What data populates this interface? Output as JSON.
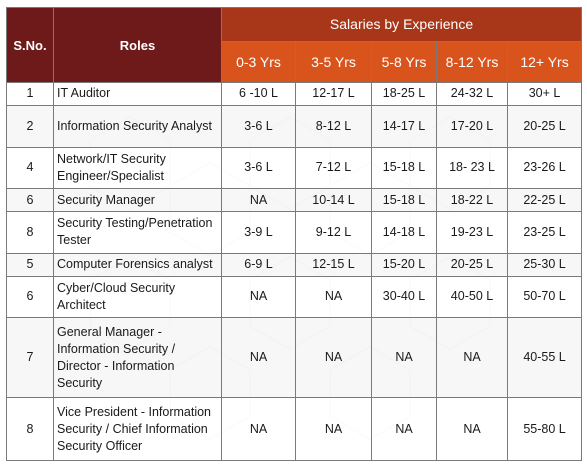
{
  "header": {
    "sno_label": "S.No.",
    "roles_label": "Roles",
    "group_label": "Salaries by Experience",
    "experience_columns": [
      "0-3 Yrs",
      "3-5 Yrs",
      "5-8 Yrs",
      "8-12 Yrs",
      "12+ Yrs"
    ]
  },
  "rows": [
    {
      "sno": "1",
      "role": "IT Auditor",
      "values": [
        "6 -10 L",
        "12-17 L",
        "18-25 L",
        "24-32 L",
        "30+ L"
      ]
    },
    {
      "sno": "2",
      "role": "Information Security Analyst",
      "values": [
        "3-6 L",
        "8-12 L",
        "14-17 L",
        "17-20 L",
        "20-25 L"
      ]
    },
    {
      "sno": "4",
      "role": "Network/IT Security Engineer/Specialist",
      "values": [
        "3-6 L",
        "7-12 L",
        "15-18 L",
        "18- 23 L",
        "23-26 L"
      ]
    },
    {
      "sno": "6",
      "role": "Security Manager",
      "values": [
        "NA",
        "10-14 L",
        "15-18 L",
        "18-22 L",
        "22-25 L"
      ]
    },
    {
      "sno": "8",
      "role": "Security Testing/Penetration Tester",
      "values": [
        "3-9 L",
        "9-12 L",
        "14-18 L",
        "19-23 L",
        "23-25 L"
      ]
    },
    {
      "sno": "5",
      "role": "Computer Forensics analyst",
      "values": [
        "6-9 L",
        "12-15 L",
        "15-20 L",
        "20-25 L",
        "25-30 L"
      ]
    },
    {
      "sno": "6",
      "role": "Cyber/Cloud Security Architect",
      "values": [
        "NA",
        "NA",
        "30-40 L",
        "40-50 L",
        "50-70 L"
      ]
    },
    {
      "sno": "7",
      "role": "General Manager - Information Security / Director - Information Security",
      "values": [
        "NA",
        "NA",
        "NA",
        "NA",
        "40-55 L"
      ]
    },
    {
      "sno": "8",
      "role": "Vice President - Information Security / Chief Information Security Officer",
      "values": [
        "NA",
        "NA",
        "NA",
        "NA",
        "55-80 L"
      ]
    }
  ],
  "colors": {
    "header_dark": "#6e1a1a",
    "header_group": "#a8371a",
    "header_sub": "#d9541c",
    "border": "#7a7a7a"
  }
}
